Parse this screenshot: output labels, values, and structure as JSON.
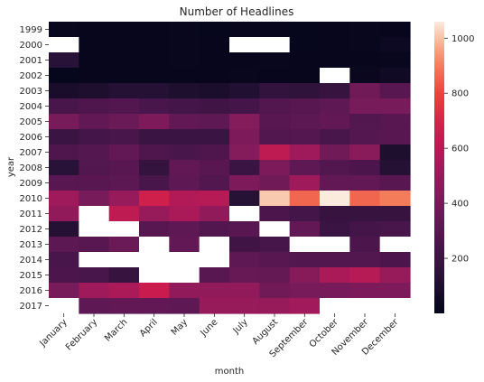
{
  "chart_data": {
    "type": "heatmap",
    "title": "Number of Headlines",
    "xlabel": "month",
    "ylabel": "year",
    "x": [
      "January",
      "February",
      "March",
      "April",
      "May",
      "June",
      "July",
      "August",
      "September",
      "October",
      "November",
      "December"
    ],
    "y": [
      "1999",
      "2000",
      "2001",
      "2002",
      "2003",
      "2004",
      "2005",
      "2006",
      "2007",
      "2008",
      "2009",
      "2010",
      "2011",
      "2012",
      "2013",
      "2014",
      "2015",
      "2016",
      "2017"
    ],
    "values": [
      [
        20,
        15,
        15,
        15,
        18,
        12,
        15,
        15,
        12,
        15,
        18,
        15
      ],
      [
        null,
        15,
        15,
        15,
        20,
        15,
        null,
        null,
        12,
        15,
        20,
        40
      ],
      [
        140,
        15,
        15,
        15,
        18,
        15,
        15,
        20,
        15,
        15,
        15,
        20
      ],
      [
        12,
        15,
        15,
        15,
        15,
        15,
        20,
        15,
        15,
        null,
        25,
        50
      ],
      [
        80,
        100,
        120,
        120,
        100,
        90,
        110,
        170,
        160,
        190,
        380,
        300
      ],
      [
        250,
        270,
        280,
        250,
        230,
        220,
        230,
        280,
        300,
        320,
        400,
        400
      ],
      [
        400,
        330,
        360,
        420,
        330,
        320,
        440,
        300,
        310,
        330,
        280,
        300
      ],
      [
        200,
        230,
        250,
        200,
        200,
        200,
        420,
        280,
        290,
        250,
        290,
        300
      ],
      [
        270,
        290,
        330,
        270,
        250,
        270,
        440,
        620,
        520,
        380,
        460,
        100
      ],
      [
        140,
        280,
        300,
        180,
        330,
        300,
        200,
        420,
        320,
        280,
        260,
        120
      ],
      [
        300,
        300,
        310,
        250,
        320,
        280,
        420,
        380,
        520,
        330,
        330,
        300
      ],
      [
        520,
        400,
        500,
        680,
        580,
        600,
        130,
        1010,
        860,
        1060,
        860,
        900
      ],
      [
        480,
        null,
        620,
        500,
        560,
        480,
        null,
        260,
        230,
        190,
        190,
        190
      ],
      [
        120,
        null,
        null,
        300,
        320,
        280,
        300,
        null,
        330,
        200,
        230,
        250
      ],
      [
        310,
        300,
        360,
        null,
        330,
        null,
        220,
        240,
        null,
        null,
        260,
        null
      ],
      [
        250,
        null,
        null,
        null,
        null,
        null,
        320,
        300,
        280,
        280,
        280,
        260
      ],
      [
        260,
        250,
        190,
        null,
        null,
        300,
        350,
        340,
        450,
        560,
        600,
        500
      ],
      [
        400,
        520,
        560,
        660,
        480,
        480,
        480,
        380,
        400,
        400,
        420,
        420
      ],
      [
        null,
        320,
        330,
        330,
        320,
        500,
        500,
        500,
        530,
        null,
        null,
        null
      ]
    ],
    "colorbar": {
      "range": [
        0,
        1060
      ],
      "ticks": [
        200,
        400,
        600,
        800,
        1000
      ]
    },
    "colormap": "rocket",
    "missing_color": "#ffffff"
  }
}
